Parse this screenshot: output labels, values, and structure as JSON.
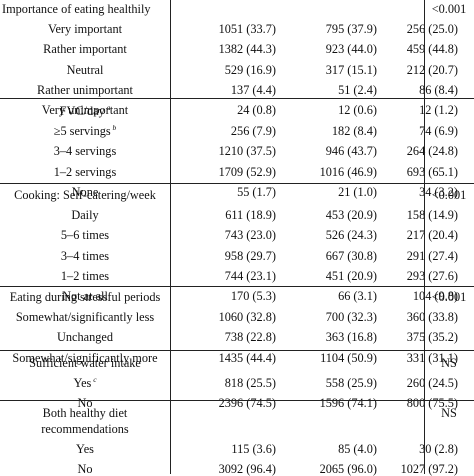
{
  "sections": [
    {
      "header": [
        "Importance of eating healthily"
      ],
      "header_top": 2,
      "pvalue": "<0.001",
      "rows": [
        {
          "label": "Very important",
          "c1": "1051 (33.7)",
          "c2": "795 (37.9)",
          "c3": "256 (25.0)"
        },
        {
          "label": "Rather important",
          "c1": "1382 (44.3)",
          "c2": "923 (44.0)",
          "c3": "459 (44.8)"
        },
        {
          "label": "Neutral",
          "c1": "529 (16.9)",
          "c2": "317 (15.1)",
          "c3": "212 (20.7)"
        },
        {
          "label": "Rather unimportant",
          "c1": "137 (4.4)",
          "c2": "51 (2.4)",
          "c3": "86 (8.4)"
        },
        {
          "label": "Very unimportant",
          "c1": "24 (0.8)",
          "c2": "12 (0.6)",
          "c3": "12 (1.2)"
        }
      ]
    },
    {
      "header": [
        "FVC/day"
      ],
      "header_sup": "a",
      "header_top": 104,
      "pvalue": "",
      "rows": [
        {
          "label": "≥5 servings",
          "sup": "b",
          "c1": "256 (7.9)",
          "c2": "182 (8.4)",
          "c3": "74 (6.9)"
        },
        {
          "label": "3–4 servings",
          "c1": "1210 (37.5)",
          "c2": "946 (43.7)",
          "c3": "264 (24.8)"
        },
        {
          "label": "1–2 servings",
          "c1": "1709 (52.9)",
          "c2": "1016 (46.9)",
          "c3": "693 (65.1)"
        },
        {
          "label": "None",
          "c1": "55 (1.7)",
          "c2": "21 (1.0)",
          "c3": "34 (3.2)"
        }
      ]
    },
    {
      "header": [
        "Cooking: Self-catering/week"
      ],
      "header_top": 188,
      "pvalue": "<0.001",
      "rows": [
        {
          "label": "Daily",
          "c1": "611 (18.9)",
          "c2": "453 (20.9)",
          "c3": "158 (14.9)"
        },
        {
          "label": "5–6 times",
          "c1": "743 (23.0)",
          "c2": "526 (24.3)",
          "c3": "217 (20.4)"
        },
        {
          "label": "3–4 times",
          "c1": "958 (29.7)",
          "c2": "667 (30.8)",
          "c3": "291 (27.4)"
        },
        {
          "label": "1–2 times",
          "c1": "744 (23.1)",
          "c2": "451 (20.9)",
          "c3": "293 (27.6)"
        },
        {
          "label": "Not at all",
          "c1": "170 (5.3)",
          "c2": "66 (3.1)",
          "c3": "104 (9.8)"
        }
      ]
    },
    {
      "header": [
        "Eating during stressful periods"
      ],
      "header_top": 290,
      "pvalue": "<0.001",
      "rows": [
        {
          "label": "Somewhat/significantly less",
          "c1": "1060 (32.8)",
          "c2": "700 (32.3)",
          "c3": "360 (33.8)"
        },
        {
          "label": "Unchanged",
          "c1": "738 (22.8)",
          "c2": "363 (16.8)",
          "c3": "375 (35.2)"
        },
        {
          "label": "Somewhat/significantly more",
          "c1": "1435 (44.4)",
          "c2": "1104 (50.9)",
          "c3": "331 (31.1)"
        }
      ]
    },
    {
      "header": [
        "Sufficient water intake"
      ],
      "header_top": 356,
      "pvalue": "NS",
      "rows": [
        {
          "label": "Yes",
          "sup": "c",
          "c1": "818 (25.5)",
          "c2": "558 (25.9)",
          "c3": "260 (24.5)"
        },
        {
          "label": "No",
          "c1": "2396 (74.5)",
          "c2": "1596 (74.1)",
          "c3": "800 (75.5)"
        }
      ]
    },
    {
      "header": [
        "Both healthy diet",
        "recommendations"
      ],
      "header_top": 406,
      "pvalue": "NS",
      "rows": [
        {
          "label": "Yes",
          "c1": "115 (3.6)",
          "c2": "85 (4.0)",
          "c3": "30 (2.8)"
        },
        {
          "label": "No",
          "c1": "3092 (96.4)",
          "c2": "2065 (96.0)",
          "c3": "1027 (97.2)"
        }
      ]
    }
  ]
}
